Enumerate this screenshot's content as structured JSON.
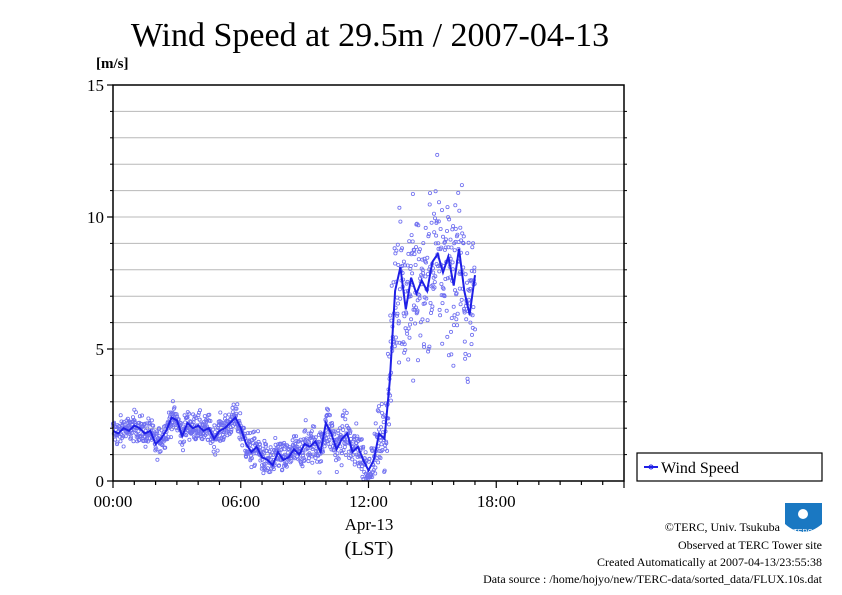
{
  "chart_data": {
    "type": "scatter",
    "title": "Wind Speed at 29.5m / 2007-04-13",
    "ylabel": "[m/s]",
    "ylim": [
      0,
      15
    ],
    "xlim": [
      "00:00",
      "24:00"
    ],
    "x_ticks": [
      "00:00",
      "06:00",
      "12:00",
      "18:00"
    ],
    "y_ticks": [
      0,
      5,
      10,
      15
    ],
    "x_date_label": "Apr-13",
    "x_timezone_label": "(LST)",
    "grid": true,
    "legend_position": "right",
    "series": [
      {
        "name": "Wind Speed",
        "color": "#1f1fe6",
        "points_color": "#6f6ff0",
        "x_hours": [
          0.0,
          0.25,
          0.5,
          0.75,
          1.0,
          1.25,
          1.5,
          1.75,
          2.0,
          2.25,
          2.5,
          2.75,
          3.0,
          3.25,
          3.5,
          3.75,
          4.0,
          4.25,
          4.5,
          4.75,
          5.0,
          5.25,
          5.5,
          5.75,
          6.0,
          6.25,
          6.5,
          6.75,
          7.0,
          7.25,
          7.5,
          7.75,
          8.0,
          8.25,
          8.5,
          8.75,
          9.0,
          9.25,
          9.5,
          9.75,
          10.0,
          10.25,
          10.5,
          10.75,
          11.0,
          11.25,
          11.5,
          11.75,
          12.0,
          12.25,
          12.5,
          12.75,
          13.0,
          13.25,
          13.5,
          13.75,
          14.0,
          14.25,
          14.5,
          14.75,
          15.0,
          15.25,
          15.5,
          15.75,
          16.0,
          16.25,
          16.5,
          16.75,
          17.0
        ],
        "mean_values": [
          1.9,
          1.8,
          2.0,
          1.9,
          2.1,
          2.0,
          1.8,
          1.9,
          1.4,
          1.6,
          1.9,
          2.4,
          2.3,
          1.7,
          2.2,
          2.0,
          2.1,
          1.9,
          2.0,
          1.6,
          1.9,
          2.0,
          2.2,
          2.4,
          2.0,
          1.4,
          1.1,
          1.3,
          0.9,
          0.8,
          0.6,
          1.1,
          0.8,
          0.9,
          1.2,
          1.0,
          1.4,
          1.3,
          1.5,
          1.1,
          2.2,
          1.8,
          1.2,
          1.6,
          1.8,
          1.1,
          1.3,
          0.8,
          0.4,
          0.8,
          1.8,
          1.6,
          3.8,
          7.2,
          8.1,
          6.5,
          7.7,
          7.1,
          7.6,
          7.2,
          8.3,
          8.6,
          7.9,
          8.5,
          7.4,
          8.8,
          7.2,
          6.3,
          7.8
        ],
        "spread": [
          0.5,
          0.5,
          0.5,
          0.5,
          0.5,
          0.5,
          0.5,
          0.5,
          0.5,
          0.5,
          0.5,
          0.5,
          0.5,
          0.5,
          0.5,
          0.5,
          0.5,
          0.5,
          0.5,
          0.5,
          0.5,
          0.5,
          0.5,
          0.5,
          0.6,
          0.6,
          0.6,
          0.6,
          0.6,
          0.6,
          0.6,
          0.6,
          0.6,
          0.6,
          0.6,
          0.6,
          0.7,
          0.7,
          0.7,
          0.7,
          0.8,
          0.8,
          0.8,
          0.8,
          0.8,
          0.8,
          0.8,
          0.8,
          0.8,
          0.8,
          1.0,
          1.2,
          2.0,
          2.6,
          2.8,
          2.8,
          2.8,
          2.8,
          2.8,
          2.8,
          2.8,
          2.8,
          2.8,
          2.8,
          2.8,
          2.8,
          2.6,
          2.6,
          2.5
        ]
      }
    ]
  },
  "credits": {
    "copyright": "©TERC, Univ. Tsukuba",
    "observed": "Observed at TERC Tower site",
    "created": "Created Automatically at 2007-04-13/23:55:38",
    "source": "Data source : /home/hojyo/new/TERC-data/sorted_data/FLUX.10s.dat",
    "logo_text": "TERC"
  }
}
